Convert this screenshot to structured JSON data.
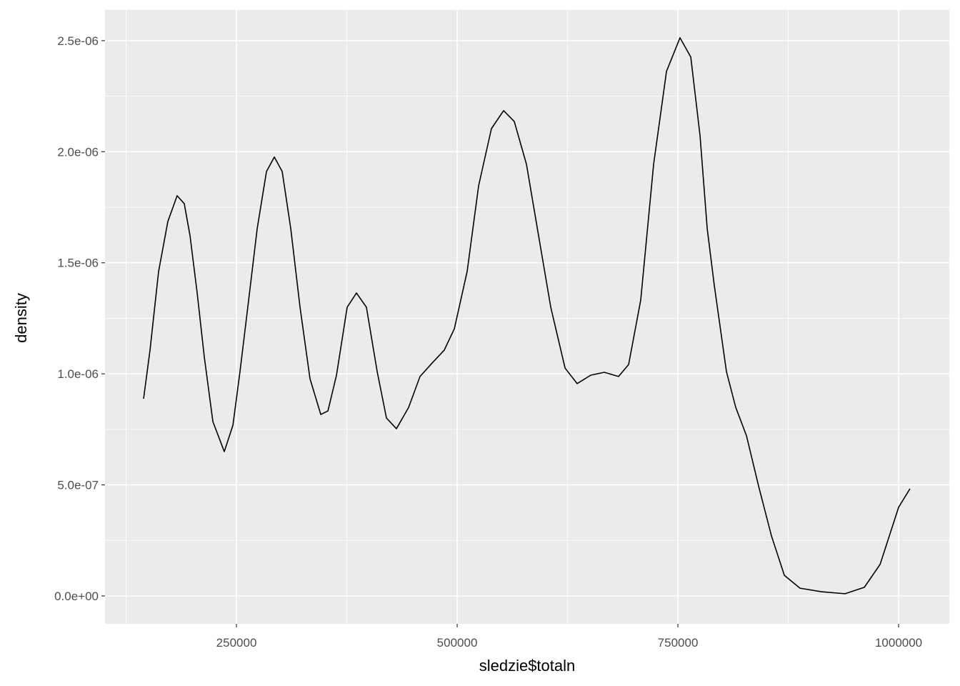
{
  "chart_data": {
    "type": "line",
    "x_label": "sledzie$totaln",
    "y_label": "density",
    "x": [
      144800,
      152100,
      161800,
      172300,
      182800,
      190900,
      197400,
      205500,
      213600,
      223300,
      236200,
      246000,
      254000,
      263800,
      273500,
      284000,
      292900,
      301800,
      311500,
      322000,
      333300,
      345500,
      353600,
      363300,
      375400,
      385900,
      397200,
      409400,
      419900,
      431200,
      445000,
      457900,
      471700,
      485400,
      496800,
      511300,
      524300,
      538800,
      552600,
      564700,
      578500,
      592200,
      606000,
      622200,
      635900,
      651300,
      666700,
      682800,
      694200,
      707900,
      722500,
      737100,
      752400,
      764600,
      775100,
      783200,
      791300,
      805000,
      815500,
      827700,
      841400,
      856000,
      870600,
      888300,
      912600,
      939300,
      961200,
      979000,
      1000000,
      1012900
    ],
    "series": [
      {
        "color": "#000000",
        "values": [
          8.88e-07,
          1.107e-06,
          1.461e-06,
          1.686e-06,
          1.802e-06,
          1.766e-06,
          1.622e-06,
          1.364e-06,
          1.075e-06,
          7.85e-07,
          6.5e-07,
          7.69e-07,
          1.01e-06,
          1.332e-06,
          1.654e-06,
          1.911e-06,
          1.976e-06,
          1.911e-06,
          1.654e-06,
          1.3e-06,
          9.78e-07,
          8.17e-07,
          8.33e-07,
          9.94e-07,
          1.3e-06,
          1.364e-06,
          1.3e-06,
          1.01e-06,
          8.01e-07,
          7.53e-07,
          8.49e-07,
          9.88e-07,
          1.049e-06,
          1.107e-06,
          1.203e-06,
          1.461e-06,
          1.847e-06,
          2.104e-06,
          2.185e-06,
          2.136e-06,
          1.943e-06,
          1.622e-06,
          1.3e-06,
          1.026e-06,
          9.56e-07,
          9.94e-07,
          1.007e-06,
          9.88e-07,
          1.042e-06,
          1.332e-06,
          1.943e-06,
          2.362e-06,
          2.513e-06,
          2.426e-06,
          2.072e-06,
          1.654e-06,
          1.396e-06,
          1.01e-06,
          8.49e-07,
          7.21e-07,
          4.95e-07,
          2.7e-07,
          9.3e-08,
          3.5e-08,
          1.9e-08,
          1e-08,
          3.9e-08,
          1.42e-07,
          3.99e-07,
          4.83e-07
        ]
      }
    ],
    "xlim": [
      101100,
      1057400
    ],
    "ylim": [
      -1.255e-07,
      2.638e-06
    ],
    "xticks": [
      250000,
      500000,
      750000,
      1000000
    ],
    "yticks": [
      {
        "value": 0,
        "label": "0.0e+00"
      },
      {
        "value": 5e-07,
        "label": "5.0e-07"
      },
      {
        "value": 1e-06,
        "label": "1.0e-06"
      },
      {
        "value": 1.5e-06,
        "label": "1.5e-06"
      },
      {
        "value": 2e-06,
        "label": "2.0e-06"
      },
      {
        "value": 2.5e-06,
        "label": "2.5e-06"
      }
    ],
    "x_minor_ticks": [
      125000,
      375000,
      625000,
      875000
    ],
    "y_minor_ticks": [
      2.5e-07,
      7.5e-07,
      1.25e-06,
      1.75e-06,
      2.25e-06
    ],
    "grid": true
  }
}
